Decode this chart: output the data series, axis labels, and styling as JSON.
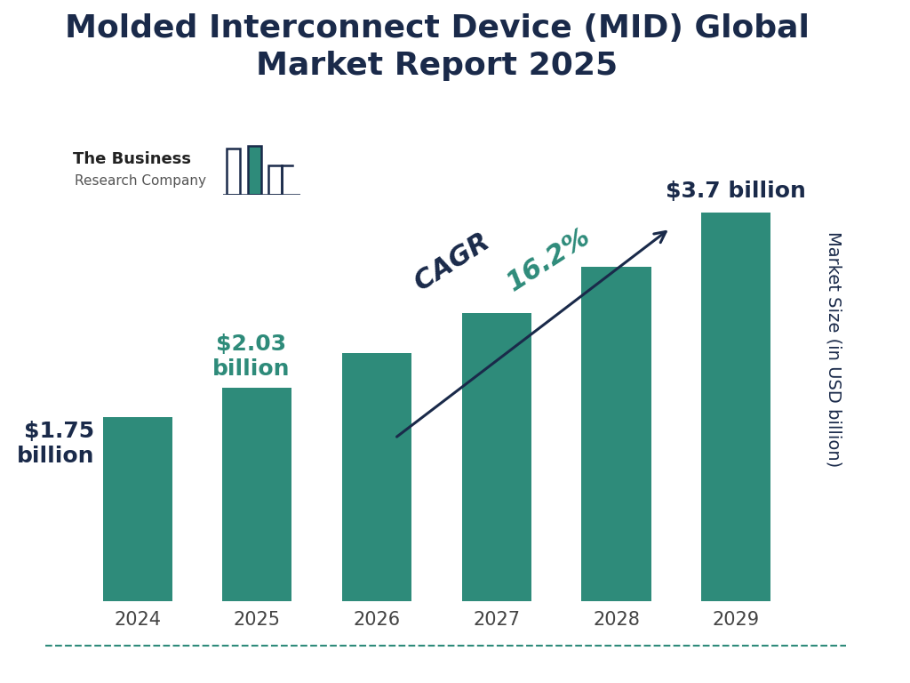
{
  "title": "Molded Interconnect Device (MID) Global\nMarket Report 2025",
  "years": [
    "2024",
    "2025",
    "2026",
    "2027",
    "2028",
    "2029"
  ],
  "values": [
    1.75,
    2.03,
    2.36,
    2.74,
    3.18,
    3.7
  ],
  "bar_color": "#2e8b7a",
  "background_color": "#ffffff",
  "title_color": "#1a2a4a",
  "ylabel": "Market Size (in USD billion)",
  "ylabel_color": "#1a2a4a",
  "annotation_colors": [
    "#1a2a4a",
    "#2e8b7a",
    "#1a2a4a"
  ],
  "cagr_label": "CAGR ",
  "cagr_value": "16.2%",
  "cagr_label_color": "#1a2a4a",
  "cagr_value_color": "#2e8b7a",
  "arrow_color": "#1a2a4a",
  "logo_bar_color": "#2e8b7a",
  "logo_outline_color": "#1a2a4a",
  "bottom_line_color": "#2e8b7a",
  "title_fontsize": 26,
  "tick_fontsize": 15,
  "ylabel_fontsize": 14,
  "annotation_fontsize_main": 18,
  "cagr_fontsize": 22,
  "logo_fontsize": 13
}
